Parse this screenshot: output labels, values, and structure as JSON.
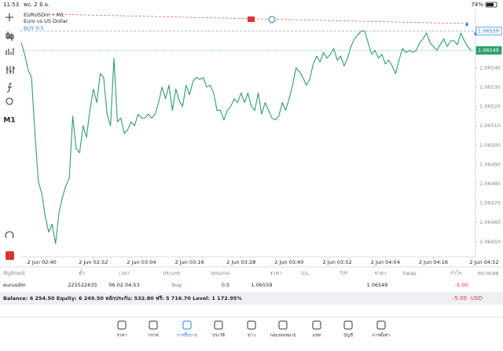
{
  "status_bar": {
    "time": "11:53",
    "date": "พฤ. 2 มิ.ย.",
    "battery": "74%"
  },
  "chart_header": {
    "symbol": "EURUSDm • M1",
    "description": "Euro vs US Dollar",
    "order_label": "BUY 0.5"
  },
  "toolbar": {
    "timeframe": "M1"
  },
  "chart_data": {
    "type": "line",
    "color": "#2e9e6e",
    "values": [
      1.06553,
      1.06547,
      1.06539,
      1.06535,
      1.06506,
      1.06481,
      1.06475,
      1.06463,
      1.06455,
      1.06459,
      1.06449,
      1.06465,
      1.06473,
      1.06479,
      1.06483,
      1.06515,
      1.06498,
      1.06496,
      1.0651,
      1.06504,
      1.06518,
      1.06529,
      1.06522,
      1.06537,
      1.06535,
      1.06516,
      1.0651,
      1.06545,
      1.06512,
      1.06514,
      1.06506,
      1.06508,
      1.06512,
      1.0651,
      1.06516,
      1.06514,
      1.06514,
      1.06516,
      1.06514,
      1.06516,
      1.06522,
      1.0653,
      1.06524,
      1.06531,
      1.06518,
      1.06529,
      1.06523,
      1.0652,
      1.06531,
      1.06526,
      1.06533,
      1.06535,
      1.06534,
      1.06535,
      1.0653,
      1.06531,
      1.06527,
      1.06518,
      1.06518,
      1.06513,
      1.06518,
      1.0652,
      1.06524,
      1.06522,
      1.06527,
      1.06522,
      1.06527,
      1.0652,
      1.06518,
      1.06527,
      1.06516,
      1.06522,
      1.06518,
      1.06514,
      1.06513,
      1.06515,
      1.06522,
      1.06518,
      1.06524,
      1.06531,
      1.0654,
      1.06538,
      1.06535,
      1.06531,
      1.06534,
      1.06542,
      1.06546,
      1.06543,
      1.06548,
      1.06545,
      1.06547,
      1.0655,
      1.06544,
      1.06546,
      1.06541,
      1.06545,
      1.06551,
      1.06555,
      1.06557,
      1.06559,
      1.06559,
      1.06553,
      1.06547,
      1.06549,
      1.06545,
      1.06547,
      1.06542,
      1.06544,
      1.06541,
      1.06537,
      1.06544,
      1.0655,
      1.06548,
      1.06549,
      1.06548,
      1.06549,
      1.06553,
      1.06555,
      1.06558,
      1.06553,
      1.06551,
      1.06549,
      1.06552,
      1.06555,
      1.06551,
      1.06554,
      1.06554,
      1.06552,
      1.06558,
      1.06554,
      1.06551,
      1.06549
    ],
    "xlim": [
      0,
      135
    ],
    "xticks": [
      {
        "value": 6,
        "label": "2 Jun 02:40"
      },
      {
        "value": 21,
        "label": "2 Jun 02:52"
      },
      {
        "value": 35,
        "label": "2 Jun 03:04"
      },
      {
        "value": 49,
        "label": "2 Jun 03:16"
      },
      {
        "value": 64,
        "label": "2 Jun 03:28"
      },
      {
        "value": 78,
        "label": "2 Jun 03:40"
      },
      {
        "value": 92,
        "label": "2 Jun 03:52"
      },
      {
        "value": 106,
        "label": "2 Jun 04:04"
      },
      {
        "value": 120,
        "label": "2 Jun 04:16"
      },
      {
        "value": 135,
        "label": "2 Jun 04:52"
      }
    ],
    "ylim": [
      1.06443,
      1.06569
    ],
    "yticks": [
      {
        "value": 1.0654,
        "label": "1.06540"
      },
      {
        "value": 1.0653,
        "label": "1.06530"
      },
      {
        "value": 1.0652,
        "label": "1.06520"
      },
      {
        "value": 1.0651,
        "label": "1.06510"
      },
      {
        "value": 1.065,
        "label": "1.06500"
      },
      {
        "value": 1.0649,
        "label": "1.06490"
      },
      {
        "value": 1.0648,
        "label": "1.06480"
      },
      {
        "value": 1.0647,
        "label": "1.06470"
      },
      {
        "value": 1.0646,
        "label": "1.06460"
      },
      {
        "value": 1.0645,
        "label": "1.06450"
      }
    ],
    "grid": false,
    "price_lines": [
      {
        "value": 1.06559,
        "color": "#2f7fd6",
        "style": "dashed"
      },
      {
        "value": 1.06549,
        "color": "#2e9e6e",
        "style": "dotted"
      }
    ]
  },
  "table": {
    "headers": [
      "สัญลักษณ์",
      "ตั๋ว",
      "เวลา",
      "ประเภท",
      "Volume",
      "ราคา",
      "S/L",
      "T/P",
      "ราคา",
      "Swap",
      "กำไร",
      "หมายเหตุ"
    ],
    "rows": [
      [
        "eurusdm",
        "225522635",
        "06.02 04:53",
        "buy",
        "0.5",
        "1.06559",
        null,
        null,
        "1.06549",
        null,
        "-5.00",
        null
      ]
    ]
  },
  "balance": {
    "summary": "Balance: 6 254.50 Equity: 6 249.50 หลักประกัน: 532.80 ฟรี: 5 716.70 Level: 1 172.95%",
    "profit": "-5.00",
    "currency": "USD"
  },
  "tabs": [
    "ราคา",
    "กราฟ",
    "การซื้อขาย",
    "ประวัติ",
    "ข่าว",
    "กล่องจดหมาย",
    "แชท",
    "บัญชี",
    "การตั้งค่า"
  ],
  "active_tab": 2
}
